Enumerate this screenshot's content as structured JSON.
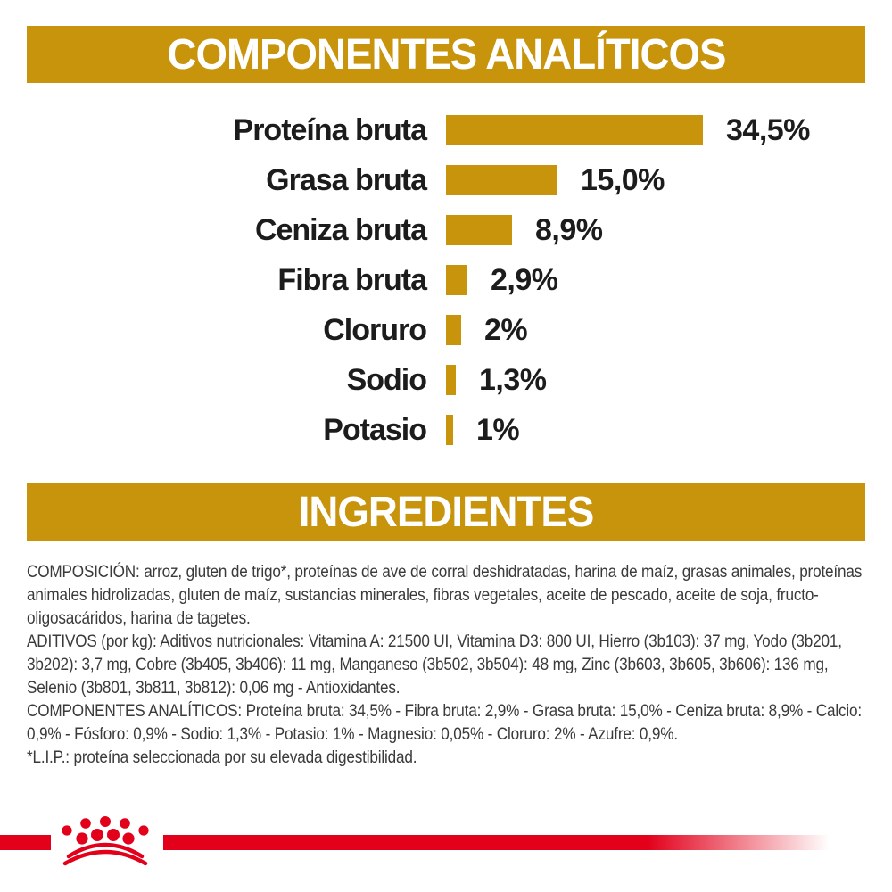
{
  "banners": {
    "analytical": "COMPONENTES ANALÍTICOS",
    "ingredients": "INGREDIENTES"
  },
  "chart_data": {
    "type": "bar",
    "orientation": "horizontal",
    "categories": [
      "Proteína bruta",
      "Grasa bruta",
      "Ceniza bruta",
      "Fibra bruta",
      "Cloruro",
      "Sodio",
      "Potasio"
    ],
    "values": [
      34.5,
      15.0,
      8.9,
      2.9,
      2,
      1.3,
      1
    ],
    "value_labels": [
      "34,5%",
      "15,0%",
      "8,9%",
      "2,9%",
      "2%",
      "1,3%",
      "1%"
    ],
    "title": "COMPONENTES ANALÍTICOS",
    "xlabel": "",
    "ylabel": "",
    "xlim": [
      0,
      40
    ],
    "grid": false,
    "legend": false,
    "bar_color": "#C7940C"
  },
  "ingredients_text": {
    "composition": "COMPOSICIÓN: arroz, gluten de trigo*, proteínas de ave de corral deshidratadas, harina de maíz, grasas animales, proteínas animales hidrolizadas, gluten de maíz, sustancias minerales, fibras vegetales, aceite de pescado, aceite de soja, fructo-oligosacáridos, harina de tagetes.",
    "additives": "ADITIVOS (por kg): Aditivos nutricionales: Vitamina A: 21500 UI, Vitamina D3: 800 UI, Hierro (3b103): 37 mg, Yodo (3b201, 3b202): 3,7 mg, Cobre (3b405, 3b406): 11 mg, Manganeso (3b502, 3b504): 48 mg, Zinc (3b603, 3b605, 3b606): 136 mg, Selenio (3b801, 3b811, 3b812): 0,06 mg - Antioxidantes.",
    "analytical_components": "COMPONENTES ANALÍTICOS: Proteína bruta: 34,5% - Fibra bruta: 2,9% - Grasa bruta: 15,0% - Ceniza bruta: 8,9% - Calcio: 0,9% - Fósforo: 0,9% - Sodio: 1,3% - Potasio: 1% - Magnesio: 0,05% - Cloruro: 2% - Azufre: 0,9%.",
    "footnote": "*L.I.P.: proteína seleccionada por su elevada digestibilidad."
  },
  "logo": {
    "name": "royal-canin-crown"
  },
  "colors": {
    "gold": "#C7940C",
    "red": "#E2001A",
    "heading_text": "#FFFFFF",
    "chart_text": "#1c1c1c",
    "body_text": "#3a3a3a"
  }
}
